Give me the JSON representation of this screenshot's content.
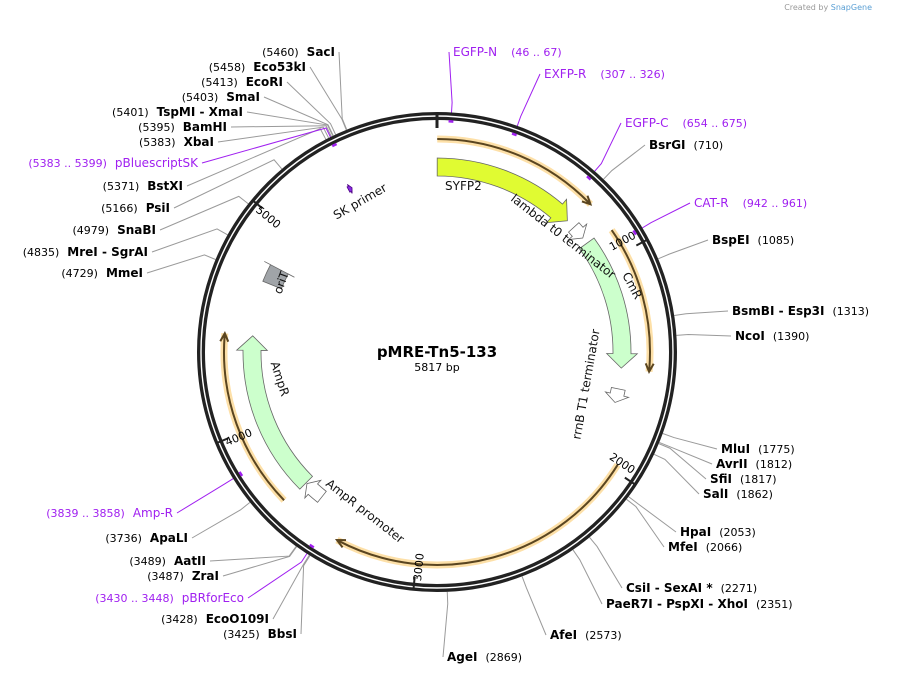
{
  "credit": {
    "prefix": "Created by",
    "brand": "SnapGene"
  },
  "plasmid": {
    "name": "pMRE-Tn5-133",
    "length_label": "5817 bp",
    "length": 5817
  },
  "ticks": [
    "1000",
    "2000",
    "3000",
    "4000",
    "5000"
  ],
  "features": [
    {
      "name": "SYFP2",
      "start": 1,
      "end": 724,
      "type": "cds",
      "color": "#e0fb32"
    },
    {
      "name": "lambda t0 terminator",
      "start": 770,
      "end": 840,
      "type": "terminator",
      "color": "#ffffff"
    },
    {
      "name": "CmR",
      "start": 873,
      "end": 1535,
      "type": "cds",
      "color": "#ccffcc"
    },
    {
      "name": "rrnB T1 terminator",
      "start": 1640,
      "end": 1710,
      "type": "terminator",
      "color": "#ffffff"
    },
    {
      "name": "AmpR promoter",
      "start": 3530,
      "end": 3630,
      "type": "promoter",
      "color": "#ffffff"
    },
    {
      "name": "AmpR",
      "start": 3636,
      "end": 4444,
      "type": "cds",
      "color": "#ccffcc"
    },
    {
      "name": "oriT",
      "start": 4720,
      "end": 4810,
      "type": "misc",
      "color": "#a0a4a8"
    },
    {
      "name": "SK primer",
      "start": 5355,
      "end": 5375,
      "type": "primer",
      "color": "#8a2be2"
    }
  ],
  "orfs": [
    {
      "start": 1,
      "end": 745
    },
    {
      "start": 890,
      "end": 1540
    },
    {
      "start": 1971,
      "end": 3361
    },
    {
      "start": 3650,
      "end": 4444
    }
  ],
  "primers": [
    {
      "name": "EGFP-N",
      "range": "(46 .. 67)",
      "pos": 56
    },
    {
      "name": "EXFP-R",
      "range": "(307 .. 326)",
      "pos": 316
    },
    {
      "name": "EGFP-C",
      "range": "(654 .. 675)",
      "pos": 664
    },
    {
      "name": "CAT-R",
      "range": "(942 .. 961)",
      "pos": 951
    },
    {
      "name": "Amp-R",
      "range": "(3839 .. 3858)",
      "pos": 3848
    },
    {
      "name": "pBRforEco",
      "range": "(3430 .. 3448)",
      "pos": 3439
    },
    {
      "name": "pBluescriptSK",
      "range": "(5383 .. 5399)",
      "pos": 5391
    }
  ],
  "sites": [
    {
      "name": "BsrGI",
      "pos": "(710)",
      "bp": 710
    },
    {
      "name": "BspEI",
      "pos": "(1085)",
      "bp": 1085
    },
    {
      "name": "BsmBI  - Esp3I",
      "pos": "(1313)",
      "bp": 1313
    },
    {
      "name": "NcoI",
      "pos": "(1390)",
      "bp": 1390
    },
    {
      "name": "MluI",
      "pos": "(1775)",
      "bp": 1775
    },
    {
      "name": "AvrII",
      "pos": "(1812)",
      "bp": 1812
    },
    {
      "name": "SfiI",
      "pos": "(1817)",
      "bp": 1817
    },
    {
      "name": "SalI",
      "pos": "(1862)",
      "bp": 1862
    },
    {
      "name": "HpaI",
      "pos": "(2053)",
      "bp": 2053
    },
    {
      "name": "MfeI",
      "pos": "(2066)",
      "bp": 2066
    },
    {
      "name": "CsiI  - SexAI *",
      "pos": "(2271)",
      "bp": 2271
    },
    {
      "name": "PaeR7I  - PspXI  - XhoI",
      "pos": "(2351)",
      "bp": 2351
    },
    {
      "name": "AfeI",
      "pos": "(2573)",
      "bp": 2573
    },
    {
      "name": "AgeI",
      "pos": "(2869)",
      "bp": 2869
    },
    {
      "name": "BbsI",
      "pos": "(3425)",
      "bp": 3425
    },
    {
      "name": "EcoO109I",
      "pos": "(3428)",
      "bp": 3428
    },
    {
      "name": "ZraI",
      "pos": "(3487)",
      "bp": 3487
    },
    {
      "name": "AatII",
      "pos": "(3489)",
      "bp": 3489
    },
    {
      "name": "ApaLI",
      "pos": "(3736)",
      "bp": 3736
    },
    {
      "name": "MmeI",
      "pos": "(4729)",
      "bp": 4729
    },
    {
      "name": "MreI  - SgrAI",
      "pos": "(4835)",
      "bp": 4835
    },
    {
      "name": "SnaBI",
      "pos": "(4979)",
      "bp": 4979
    },
    {
      "name": "PsiI",
      "pos": "(5166)",
      "bp": 5166
    },
    {
      "name": "BstXI",
      "pos": "(5371)",
      "bp": 5371
    },
    {
      "name": "XbaI",
      "pos": "(5383)",
      "bp": 5383
    },
    {
      "name": "BamHI",
      "pos": "(5395)",
      "bp": 5395
    },
    {
      "name": "TspMI  - XmaI",
      "pos": "(5401)",
      "bp": 5401
    },
    {
      "name": "SmaI",
      "pos": "(5403)",
      "bp": 5403
    },
    {
      "name": "EcoRI",
      "pos": "(5413)",
      "bp": 5413
    },
    {
      "name": "Eco53kI",
      "pos": "(5458)",
      "bp": 5458
    },
    {
      "name": "SacI",
      "pos": "(5460)",
      "bp": 5460
    }
  ],
  "colors": {
    "orf": "#f5b94a",
    "orf_glow": "#fde0a8",
    "primer": "#a020f0",
    "ring": "#222222",
    "leader": "#9a9a9a"
  }
}
